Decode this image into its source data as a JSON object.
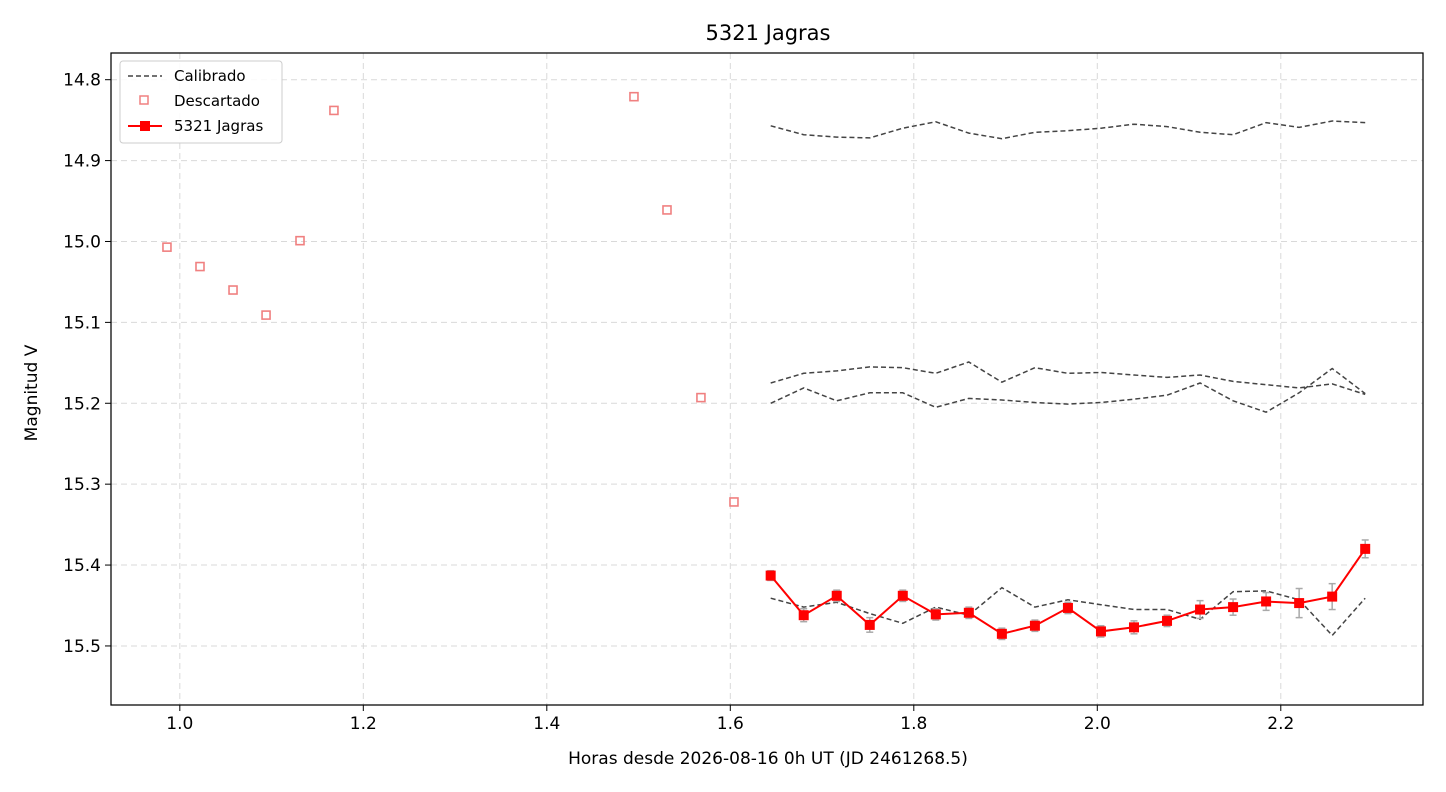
{
  "chart_data": {
    "type": "line",
    "title": "5321 Jagras",
    "xlabel": "Horas desde 2026-08-16 0h UT (JD 2461268.5)",
    "ylabel": "Magnitud V",
    "xlim": [
      0.925,
      2.355
    ],
    "ylim": [
      15.573,
      14.767
    ],
    "y_inverted": true,
    "grid": true,
    "legend_position": "top-left",
    "xticks": [
      1.0,
      1.2,
      1.4,
      1.6,
      1.8,
      2.0,
      2.2
    ],
    "xtick_labels": [
      "1.0",
      "1.2",
      "1.4",
      "1.6",
      "1.8",
      "2.0",
      "2.2"
    ],
    "yticks": [
      14.8,
      14.9,
      15.0,
      15.1,
      15.2,
      15.3,
      15.4,
      15.5
    ],
    "ytick_labels": [
      "14.8",
      "14.9",
      "15.0",
      "15.1",
      "15.2",
      "15.3",
      "15.4",
      "15.5"
    ],
    "legend": [
      "Calibrado",
      "Descartado",
      "5321 Jagras"
    ],
    "colors": {
      "calibrated": "#444444",
      "discarded": "#f08080",
      "target": "#ff0000",
      "errorbar": "#a9a9a9",
      "grid": "#d9d9d9"
    },
    "series": [
      {
        "name": "Calibrado",
        "style": "dashed",
        "x": [
          1.644,
          1.68,
          1.716,
          1.752,
          1.788,
          1.824,
          1.86,
          1.896,
          1.932,
          1.968,
          2.004,
          2.04,
          2.076,
          2.112,
          2.148,
          2.184,
          2.22,
          2.256,
          2.292
        ],
        "y": [
          14.857,
          14.868,
          14.871,
          14.872,
          14.86,
          14.852,
          14.866,
          14.873,
          14.865,
          14.863,
          14.86,
          14.855,
          14.858,
          14.865,
          14.868,
          14.853,
          14.859,
          14.851,
          14.853
        ]
      },
      {
        "name": "Calibrado",
        "style": "dashed",
        "x": [
          1.644,
          1.68,
          1.716,
          1.752,
          1.788,
          1.824,
          1.86,
          1.896,
          1.932,
          1.968,
          2.004,
          2.04,
          2.076,
          2.112,
          2.148,
          2.184,
          2.22,
          2.256,
          2.292
        ],
        "y": [
          15.175,
          15.163,
          15.16,
          15.155,
          15.156,
          15.163,
          15.149,
          15.174,
          15.156,
          15.163,
          15.162,
          15.165,
          15.168,
          15.165,
          15.173,
          15.177,
          15.181,
          15.176,
          15.189
        ]
      },
      {
        "name": "Calibrado",
        "style": "dashed",
        "x": [
          1.644,
          1.68,
          1.716,
          1.752,
          1.788,
          1.824,
          1.86,
          1.896,
          1.932,
          1.968,
          2.004,
          2.04,
          2.076,
          2.112,
          2.148,
          2.184,
          2.22,
          2.256,
          2.292
        ],
        "y": [
          15.2,
          15.181,
          15.197,
          15.187,
          15.187,
          15.205,
          15.194,
          15.196,
          15.199,
          15.201,
          15.199,
          15.195,
          15.19,
          15.175,
          15.197,
          15.211,
          15.187,
          15.157,
          15.188
        ]
      },
      {
        "name": "Calibrado",
        "style": "dashed",
        "x": [
          1.644,
          1.68,
          1.716,
          1.752,
          1.788,
          1.824,
          1.86,
          1.896,
          1.932,
          1.968,
          2.004,
          2.04,
          2.076,
          2.112,
          2.148,
          2.184,
          2.22,
          2.256,
          2.292
        ],
        "y": [
          15.441,
          15.452,
          15.446,
          15.46,
          15.472,
          15.452,
          15.462,
          15.428,
          15.452,
          15.443,
          15.449,
          15.455,
          15.455,
          15.467,
          15.433,
          15.432,
          15.443,
          15.487,
          15.441
        ]
      },
      {
        "name": "Descartado",
        "style": "markers",
        "x": [
          0.986,
          1.022,
          1.058,
          1.094,
          1.131,
          1.168,
          1.495,
          1.531,
          1.568,
          1.604
        ],
        "y": [
          15.007,
          15.031,
          15.06,
          15.091,
          14.999,
          14.838,
          14.821,
          14.961,
          15.193,
          15.322
        ]
      },
      {
        "name": "5321 Jagras",
        "style": "line-markers",
        "x": [
          1.644,
          1.68,
          1.716,
          1.752,
          1.788,
          1.824,
          1.86,
          1.896,
          1.932,
          1.968,
          2.004,
          2.04,
          2.076,
          2.112,
          2.148,
          2.184,
          2.22,
          2.256,
          2.292
        ],
        "y": [
          15.413,
          15.462,
          15.438,
          15.474,
          15.438,
          15.461,
          15.459,
          15.485,
          15.475,
          15.453,
          15.482,
          15.477,
          15.469,
          15.455,
          15.452,
          15.445,
          15.447,
          15.439,
          15.38
        ],
        "yerr": [
          0.006,
          0.008,
          0.007,
          0.009,
          0.007,
          0.007,
          0.007,
          0.007,
          0.007,
          0.007,
          0.007,
          0.008,
          0.007,
          0.011,
          0.01,
          0.011,
          0.018,
          0.016,
          0.011
        ]
      }
    ]
  }
}
